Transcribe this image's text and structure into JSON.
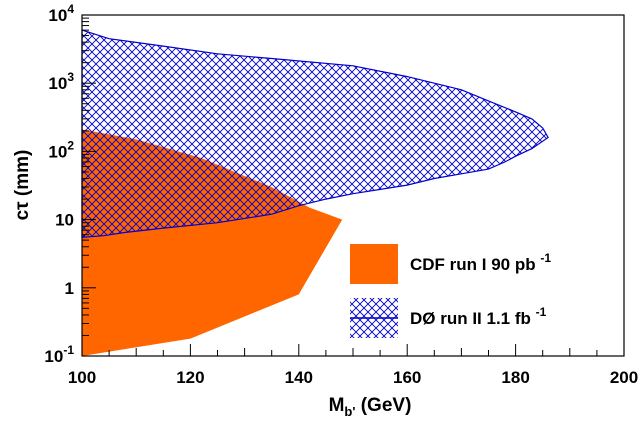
{
  "chart_data": {
    "type": "area",
    "xlabel": "M",
    "xlabel_sub": "b'",
    "xlabel_unit": " (GeV)",
    "ylabel": "cτ (mm)",
    "xlim": [
      100,
      200
    ],
    "ylim": [
      0.1,
      10000
    ],
    "y_scale": "log",
    "grid": false,
    "legend_position": "lower-right",
    "x_tick_labels": [
      {
        "value": 100,
        "label": "100"
      },
      {
        "value": 120,
        "label": "120"
      },
      {
        "value": 140,
        "label": "140"
      },
      {
        "value": 160,
        "label": "160"
      },
      {
        "value": 180,
        "label": "180"
      },
      {
        "value": 200,
        "label": "200"
      }
    ],
    "y_tick_labels": [
      {
        "value": 0.1,
        "base": "10",
        "exp": "-1"
      },
      {
        "value": 1,
        "base": "1",
        "exp": ""
      },
      {
        "value": 10,
        "base": "10",
        "exp": ""
      },
      {
        "value": 100,
        "base": "10",
        "exp": "2"
      },
      {
        "value": 1000,
        "base": "10",
        "exp": "3"
      },
      {
        "value": 10000,
        "base": "10",
        "exp": "4"
      }
    ],
    "series": [
      {
        "name": "CDF run I 90 pb",
        "name_sup": "-1",
        "fill": "solid",
        "color": "#ff6600",
        "polygon": [
          [
            100,
            0.1
          ],
          [
            120,
            0.18
          ],
          [
            140,
            0.8
          ],
          [
            148,
            10
          ],
          [
            142,
            15
          ],
          [
            135,
            30
          ],
          [
            122,
            80
          ],
          [
            110,
            150
          ],
          [
            100,
            210
          ]
        ]
      },
      {
        "name": "DØ run II 1.1 fb",
        "name_sup": "-1",
        "fill": "crosshatch",
        "color": "#0000cc",
        "polygon": [
          [
            100,
            6000
          ],
          [
            105,
            4500
          ],
          [
            115,
            3500
          ],
          [
            125,
            2700
          ],
          [
            135,
            2300
          ],
          [
            150,
            1800
          ],
          [
            160,
            1250
          ],
          [
            170,
            800
          ],
          [
            175,
            550
          ],
          [
            180,
            380
          ],
          [
            183,
            300
          ],
          [
            185,
            220
          ],
          [
            186,
            160
          ],
          [
            183,
            110
          ],
          [
            180,
            85
          ],
          [
            178,
            70
          ],
          [
            175,
            55
          ],
          [
            170,
            47
          ],
          [
            165,
            40
          ],
          [
            160,
            32
          ],
          [
            150,
            24
          ],
          [
            145,
            20
          ],
          [
            140,
            16
          ],
          [
            135,
            12
          ],
          [
            125,
            9
          ],
          [
            115,
            7.5
          ],
          [
            108,
            6.5
          ],
          [
            104,
            5.8
          ],
          [
            100,
            5.5
          ]
        ]
      }
    ]
  }
}
